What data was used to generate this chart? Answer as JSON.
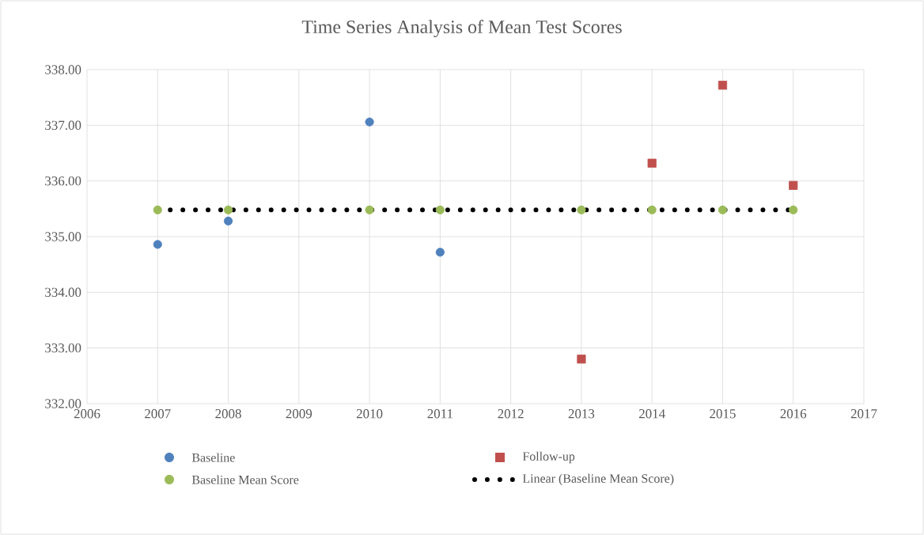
{
  "chart_data": {
    "type": "scatter",
    "title": "Time Series Analysis of Mean Test Scores",
    "xlim": [
      2006,
      2017
    ],
    "xticks": [
      {
        "value": 2006,
        "label": "2006"
      },
      {
        "value": 2007,
        "label": "2007"
      },
      {
        "value": 2008,
        "label": "2008"
      },
      {
        "value": 2009,
        "label": "2009"
      },
      {
        "value": 2010,
        "label": "2010"
      },
      {
        "value": 2011,
        "label": "2011"
      },
      {
        "value": 2012,
        "label": "2012"
      },
      {
        "value": 2013,
        "label": "2013"
      },
      {
        "value": 2014,
        "label": "2014"
      },
      {
        "value": 2015,
        "label": "2015"
      },
      {
        "value": 2016,
        "label": "2016"
      },
      {
        "value": 2017,
        "label": "2017"
      }
    ],
    "ylim": [
      332,
      338
    ],
    "yticks": [
      {
        "value": 332,
        "label": "332.00"
      },
      {
        "value": 333,
        "label": "333.00"
      },
      {
        "value": 334,
        "label": "334.00"
      },
      {
        "value": 335,
        "label": "335.00"
      },
      {
        "value": 336,
        "label": "336.00"
      },
      {
        "value": 337,
        "label": "337.00"
      },
      {
        "value": 338,
        "label": "338.00"
      }
    ],
    "grid": true,
    "legend": "bottom",
    "series": [
      {
        "name": "Baseline",
        "color": "#4f81bd",
        "marker": "circle",
        "x": [
          2007,
          2008,
          2010,
          2011
        ],
        "values": [
          334.86,
          335.28,
          337.06,
          334.72
        ]
      },
      {
        "name": "Follow-up",
        "color": "#c0504d",
        "marker": "square",
        "x": [
          2013,
          2014,
          2015,
          2016
        ],
        "values": [
          332.8,
          336.32,
          337.72,
          335.92
        ]
      },
      {
        "name": "Baseline Mean Score",
        "color": "#9bbb59",
        "marker": "circle",
        "x": [
          2007,
          2008,
          2010,
          2011,
          2013,
          2014,
          2015,
          2016
        ],
        "values": [
          335.48,
          335.48,
          335.48,
          335.48,
          335.48,
          335.48,
          335.48,
          335.48
        ]
      },
      {
        "name": "Linear (Baseline Mean Score)",
        "type": "line",
        "color": "#000000",
        "marker": "none",
        "line_style": "dotted",
        "x": [
          2007,
          2016
        ],
        "values": [
          335.48,
          335.48
        ]
      }
    ]
  }
}
